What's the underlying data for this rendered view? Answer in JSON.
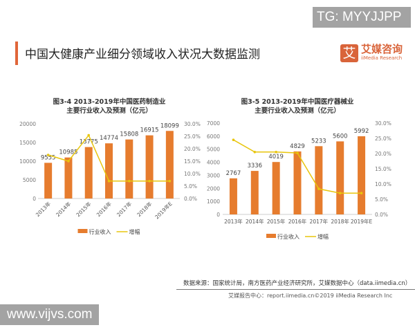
{
  "watermark_top": "TG: MYYJJPP",
  "watermark_bottom": "www.vijvs.com",
  "header": {
    "title": "中国大健康产业细分领域收入状况大数据监测",
    "logo_mark": "艾",
    "logo_cn": "艾媒咨询",
    "logo_en": "iiMedia Research"
  },
  "footer": {
    "source": "数据来源：国家统计局，南方医药产业经济研究所，艾媒数据中心（data.iimedia.cn）",
    "credit": "艾媒报告中心：report.iimedia.cn©2019 iiMedia Research Inc"
  },
  "colors": {
    "bar": "#e67c2e",
    "line": "#e8c50c"
  },
  "chart_data": [
    {
      "type": "bar+line",
      "title": [
        "图3-4 2013-2019年中国医药制造业",
        "主要行业收入及预测（亿元）"
      ],
      "categories": [
        "2013年",
        "2014年",
        "2015年",
        "2016年",
        "2017年",
        "2018年",
        "2019年E"
      ],
      "series": [
        {
          "name": "行业收入",
          "type": "bar",
          "axis": "left",
          "values": [
            9555,
            10985,
            13775,
            14774,
            15808,
            16915,
            18099
          ]
        },
        {
          "name": "增幅",
          "type": "line",
          "axis": "right",
          "values": [
            17.5,
            15.0,
            25.4,
            7.0,
            7.0,
            7.0,
            7.0
          ]
        }
      ],
      "yticks_left": [
        "0",
        "5000",
        "10000",
        "15000",
        "20000"
      ],
      "ylim_left": [
        0,
        20000
      ],
      "yticks_right": [
        "0.0%",
        "5.0%",
        "10.0%",
        "15.0%",
        "20.0%",
        "25.0%",
        "30.0%"
      ],
      "ylim_right": [
        0,
        30
      ],
      "xlabel_rotated": true,
      "legend": "bottom"
    },
    {
      "type": "bar+line",
      "title": [
        "图3-5 2013-2019年中国医疗器械业",
        "主要行业收入及预测（亿元）"
      ],
      "categories": [
        "2013年",
        "2014年",
        "2015年",
        "2016年",
        "2017年",
        "2018年",
        "2019年E"
      ],
      "series": [
        {
          "name": "行业收入",
          "type": "bar",
          "axis": "left",
          "values": [
            2767,
            3336,
            4019,
            4829,
            5233,
            5600,
            5992
          ]
        },
        {
          "name": "增幅",
          "type": "line",
          "axis": "right",
          "values": [
            24.5,
            20.5,
            20.5,
            20.2,
            8.4,
            7.0,
            7.0
          ]
        }
      ],
      "yticks_left": [
        "0",
        "1000",
        "2000",
        "3000",
        "4000",
        "5000",
        "6000",
        "7000"
      ],
      "ylim_left": [
        0,
        7000
      ],
      "yticks_right": [
        "0.0%",
        "5.0%",
        "10.0%",
        "15.0%",
        "20.0%",
        "25.0%",
        "30.0%"
      ],
      "ylim_right": [
        0,
        30
      ],
      "xlabel_rotated": false,
      "legend": "bottom"
    }
  ]
}
